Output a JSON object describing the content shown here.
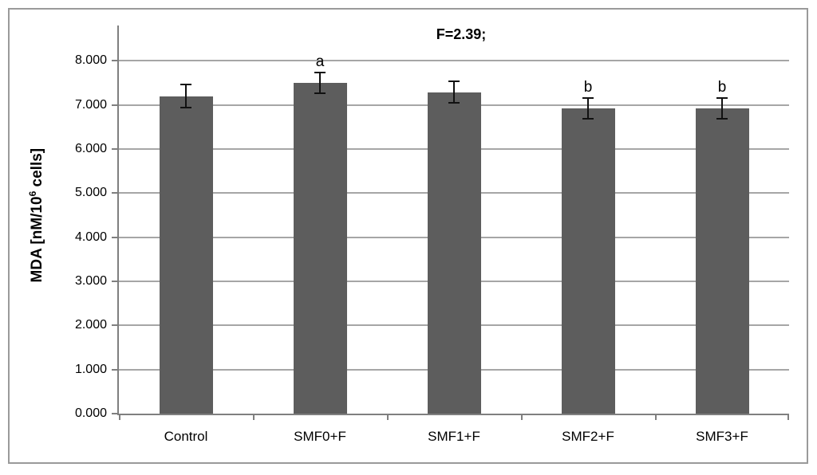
{
  "chart_data": {
    "type": "bar",
    "title": "F=2.39;",
    "ylabel": "MDA [nM/10^6 cells]",
    "ylabel_prefix": "MDA [nM/10",
    "ylabel_sup": "6",
    "ylabel_suffix": " cells]",
    "categories": [
      "Control",
      "SMF0+F",
      "SMF1+F",
      "SMF2+F",
      "SMF3+F"
    ],
    "values": [
      7.2,
      7.5,
      7.29,
      6.92,
      6.92
    ],
    "errors": [
      0.27,
      0.24,
      0.24,
      0.23,
      0.23
    ],
    "significance": [
      "",
      "a",
      "",
      "b",
      "b"
    ],
    "ylim": [
      0,
      8.8
    ],
    "ytick_step": 1.0,
    "ytick_labels": [
      "0.000",
      "1.000",
      "2.000",
      "3.000",
      "4.000",
      "5.000",
      "6.000",
      "7.000",
      "8.000"
    ],
    "grid": true,
    "legend": "none",
    "colors": {
      "bar": "#5d5d5d",
      "gridline": "#a6a6a6",
      "axis": "#7f7f7f",
      "frame_border": "#9a9a9a",
      "error_bar": "#111111",
      "text": "#000000"
    }
  }
}
